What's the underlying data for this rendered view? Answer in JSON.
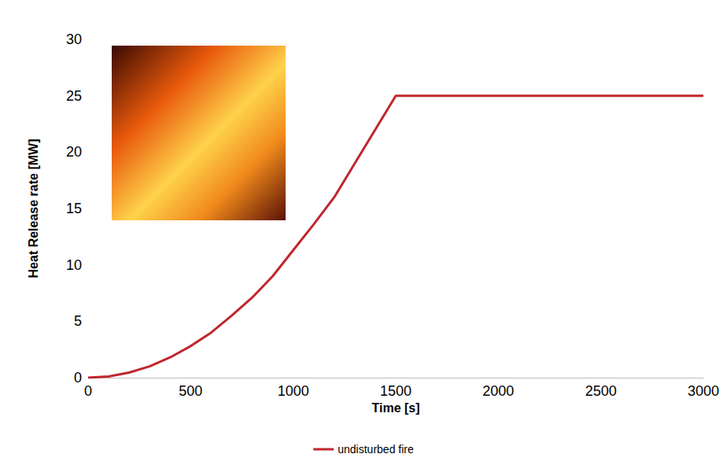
{
  "chart_data": {
    "type": "line",
    "x_label": "Time [s]",
    "y_label": "Heat Release rate [MW]",
    "x": [
      0,
      100,
      200,
      300,
      400,
      500,
      600,
      700,
      800,
      900,
      1000,
      1100,
      1200,
      1500,
      3000
    ],
    "series": [
      {
        "name": "undisturbed fire",
        "color": "#c0262d",
        "values": [
          0,
          0.1,
          0.45,
          1.0,
          1.8,
          2.8,
          4.0,
          5.5,
          7.1,
          9.0,
          11.3,
          13.6,
          16,
          25,
          25
        ]
      }
    ],
    "xlim": [
      0,
      3000
    ],
    "xticks": [
      0,
      500,
      1000,
      1500,
      2000,
      2500,
      3000
    ],
    "ylim": [
      0,
      30
    ],
    "yticks": [
      0,
      5,
      10,
      15,
      20,
      25,
      30
    ],
    "grid": false,
    "legend": "bottom"
  }
}
